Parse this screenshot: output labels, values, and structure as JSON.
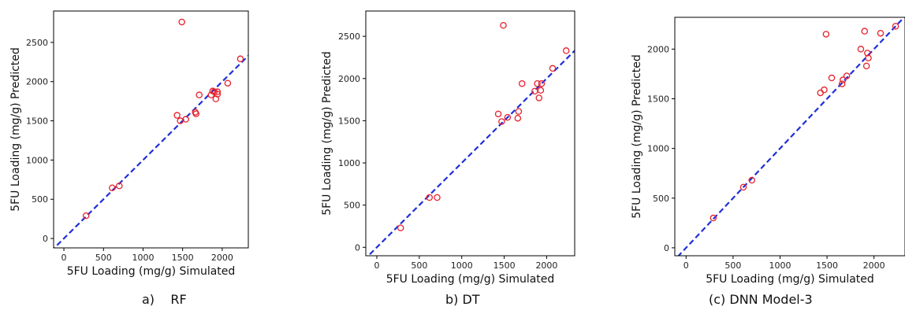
{
  "chart_data": [
    {
      "type": "scatter",
      "caption": "a)    RF",
      "xlabel": "5FU Loading (mg/g) Simulated",
      "ylabel": "5FU Loading (mg/g) Predicted",
      "xlim": [
        -130,
        2330
      ],
      "ylim": [
        -120,
        2900
      ],
      "xticks": [
        0,
        500,
        1000,
        1500,
        2000
      ],
      "yticks": [
        0,
        500,
        1000,
        1500,
        2000,
        2500
      ],
      "marker_color": "#e8202a",
      "line_color": "#1f2fd9",
      "reference_line": "y = x",
      "points": [
        [
          280,
          290
        ],
        [
          610,
          645
        ],
        [
          700,
          670
        ],
        [
          1430,
          1570
        ],
        [
          1470,
          1500
        ],
        [
          1490,
          2760
        ],
        [
          1540,
          1520
        ],
        [
          1660,
          1610
        ],
        [
          1670,
          1590
        ],
        [
          1710,
          1830
        ],
        [
          1860,
          1830
        ],
        [
          1880,
          1880
        ],
        [
          1900,
          1870
        ],
        [
          1920,
          1780
        ],
        [
          1940,
          1840
        ],
        [
          1940,
          1870
        ],
        [
          2070,
          1980
        ],
        [
          2230,
          2290
        ]
      ]
    },
    {
      "type": "scatter",
      "caption": "b) DT",
      "xlabel": "5FU Loading (mg/g) Simulated",
      "ylabel": "5FU Loading (mg/g) Predicted",
      "xlim": [
        -130,
        2330
      ],
      "ylim": [
        -100,
        2800
      ],
      "xticks": [
        0,
        500,
        1000,
        1500,
        2000
      ],
      "yticks": [
        0,
        500,
        1000,
        1500,
        2000,
        2500
      ],
      "marker_color": "#e8202a",
      "line_color": "#1f2fd9",
      "reference_line": "y = x",
      "points": [
        [
          280,
          230
        ],
        [
          620,
          590
        ],
        [
          710,
          590
        ],
        [
          1430,
          1580
        ],
        [
          1470,
          1490
        ],
        [
          1490,
          2630
        ],
        [
          1540,
          1540
        ],
        [
          1660,
          1530
        ],
        [
          1670,
          1610
        ],
        [
          1710,
          1940
        ],
        [
          1860,
          1850
        ],
        [
          1890,
          1940
        ],
        [
          1910,
          1770
        ],
        [
          1930,
          1860
        ],
        [
          1940,
          1940
        ],
        [
          2070,
          2120
        ],
        [
          2230,
          2330
        ]
      ]
    },
    {
      "type": "scatter",
      "caption": "(c) DNN Model-3",
      "xlabel": "5FU Loading (mg/g) Simulated",
      "ylabel": "5FU Loading (mg/g) Predicted",
      "xlim": [
        -120,
        2330
      ],
      "ylim": [
        -80,
        2320
      ],
      "xticks": [
        0,
        500,
        1000,
        1500,
        2000
      ],
      "yticks": [
        0,
        500,
        1000,
        1500,
        2000
      ],
      "marker_color": "#e8202a",
      "line_color": "#1f2fd9",
      "reference_line": "y = x",
      "points": [
        [
          290,
          300
        ],
        [
          610,
          610
        ],
        [
          700,
          680
        ],
        [
          1430,
          1560
        ],
        [
          1470,
          1590
        ],
        [
          1490,
          2150
        ],
        [
          1550,
          1710
        ],
        [
          1660,
          1650
        ],
        [
          1670,
          1690
        ],
        [
          1710,
          1730
        ],
        [
          1860,
          2000
        ],
        [
          1900,
          2180
        ],
        [
          1920,
          1830
        ],
        [
          1930,
          1960
        ],
        [
          1940,
          1910
        ],
        [
          2070,
          2160
        ],
        [
          2230,
          2230
        ]
      ]
    }
  ]
}
